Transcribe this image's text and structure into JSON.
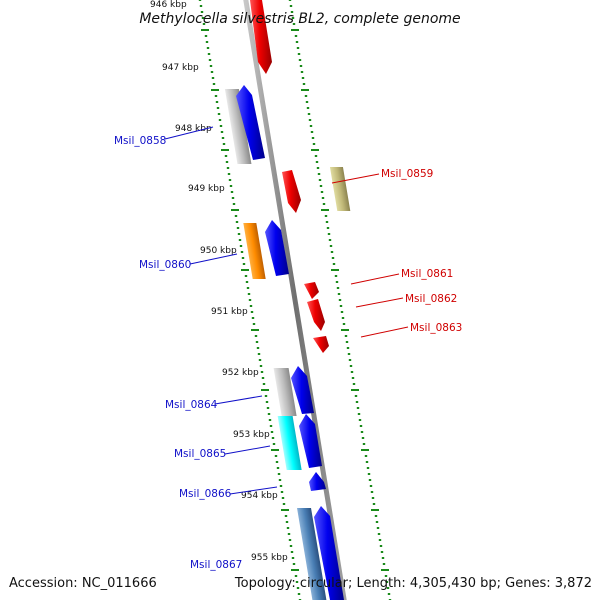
{
  "title": "Methylocella silvestris BL2, complete genome",
  "top_cut_label": "946 kbp",
  "footer": {
    "accession": "Accession: NC_011666",
    "topology": "Topology: circular; Length: 4,305,430 bp; Genes: 3,872"
  },
  "ticks": [
    {
      "label": "947 kbp"
    },
    {
      "label": "948 kbp"
    },
    {
      "label": "949 kbp"
    },
    {
      "label": "950 kbp"
    },
    {
      "label": "951 kbp"
    },
    {
      "label": "952 kbp"
    },
    {
      "label": "953 kbp"
    },
    {
      "label": "954 kbp"
    },
    {
      "label": "955 kbp"
    }
  ],
  "gene_labels": [
    {
      "name": "Msil_0858",
      "strand": "minus"
    },
    {
      "name": "Msil_0859",
      "strand": "plus"
    },
    {
      "name": "Msil_0860",
      "strand": "minus"
    },
    {
      "name": "Msil_0861",
      "strand": "plus"
    },
    {
      "name": "Msil_0862",
      "strand": "plus"
    },
    {
      "name": "Msil_0863",
      "strand": "plus"
    },
    {
      "name": "Msil_0864",
      "strand": "minus"
    },
    {
      "name": "Msil_0865",
      "strand": "minus"
    },
    {
      "name": "Msil_0866",
      "strand": "minus"
    },
    {
      "name": "Msil_0867",
      "strand": "minus"
    }
  ],
  "colors": {
    "minus_strand": "#1010c8",
    "plus_strand": "#d00000",
    "tick_green": "#1a8a1a",
    "backbone": "#808080"
  }
}
